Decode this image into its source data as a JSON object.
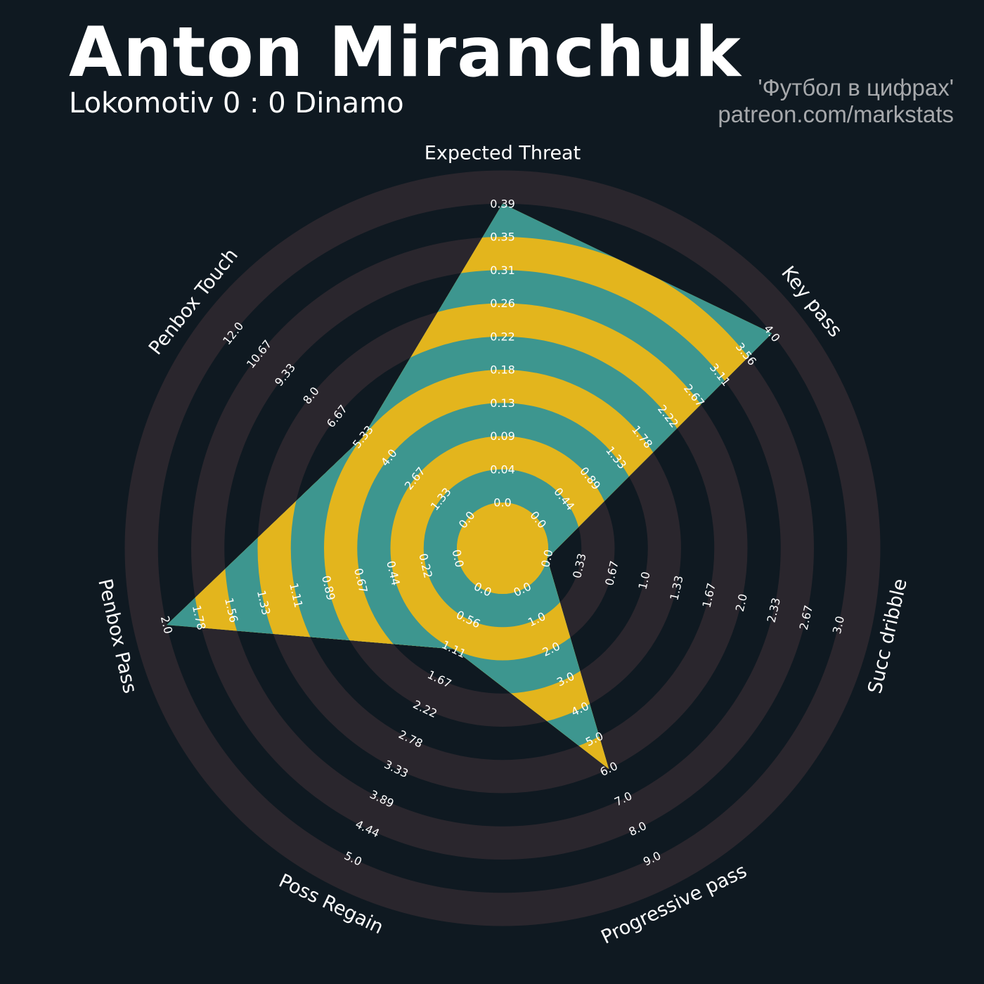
{
  "header": {
    "title": "Anton Miranchuk",
    "subtitle": "Lokomotiv 0 : 0 Dinamo",
    "credit_line1": "'Футбол в цифрах'",
    "credit_line2": "patreon.com/markstats"
  },
  "colors": {
    "background": "#0f1921",
    "ring_dark": "#2a262d",
    "fill_teal": "#3d968f",
    "fill_yellow": "#e3b51d",
    "tick_label": "#ffffff",
    "axis_label": "#ffffff"
  },
  "chart_data": {
    "type": "radar",
    "title": "Anton Miranchuk",
    "subtitle": "Lokomotiv 0 : 0 Dinamo",
    "grid": false,
    "axes": [
      {
        "name": "Expected Threat",
        "min": 0.0,
        "max": 0.39,
        "value": 0.39,
        "ticks": [
          "0.0",
          "0.04",
          "0.09",
          "0.13",
          "0.18",
          "0.22",
          "0.26",
          "0.31",
          "0.35",
          "0.39"
        ]
      },
      {
        "name": "Key pass",
        "min": 0.0,
        "max": 4.0,
        "value": 4.0,
        "ticks": [
          "0.0",
          "0.44",
          "0.89",
          "1.33",
          "1.78",
          "2.22",
          "2.67",
          "3.11",
          "3.56",
          "4.0"
        ]
      },
      {
        "name": "Succ dribble",
        "min": 0.0,
        "max": 3.0,
        "value": 0.0,
        "ticks": [
          "0.0",
          "0.33",
          "0.67",
          "1.0",
          "1.33",
          "1.67",
          "2.0",
          "2.33",
          "2.67",
          "3.0"
        ]
      },
      {
        "name": "Progressive pass",
        "min": 0.0,
        "max": 9.0,
        "value": 6.0,
        "ticks": [
          "0.0",
          "1.0",
          "2.0",
          "3.0",
          "4.0",
          "5.0",
          "6.0",
          "7.0",
          "8.0",
          "9.0"
        ]
      },
      {
        "name": "Poss Regain",
        "min": 0.0,
        "max": 5.0,
        "value": 1.11,
        "ticks": [
          "0.0",
          "0.56",
          "1.11",
          "1.67",
          "2.22",
          "2.78",
          "3.33",
          "3.89",
          "4.44",
          "5.0"
        ]
      },
      {
        "name": "Penbox Pass",
        "min": 0.0,
        "max": 2.0,
        "value": 2.0,
        "ticks": [
          "0.0",
          "0.22",
          "0.44",
          "0.67",
          "0.89",
          "1.11",
          "1.33",
          "1.56",
          "1.78",
          "2.0"
        ]
      },
      {
        "name": "Penbox Touch",
        "min": 0.0,
        "max": 12.0,
        "value": 5.33,
        "ticks": [
          "0.0",
          "1.33",
          "2.67",
          "4.0",
          "5.33",
          "6.67",
          "8.0",
          "9.33",
          "10.67",
          "12.0"
        ]
      }
    ]
  }
}
